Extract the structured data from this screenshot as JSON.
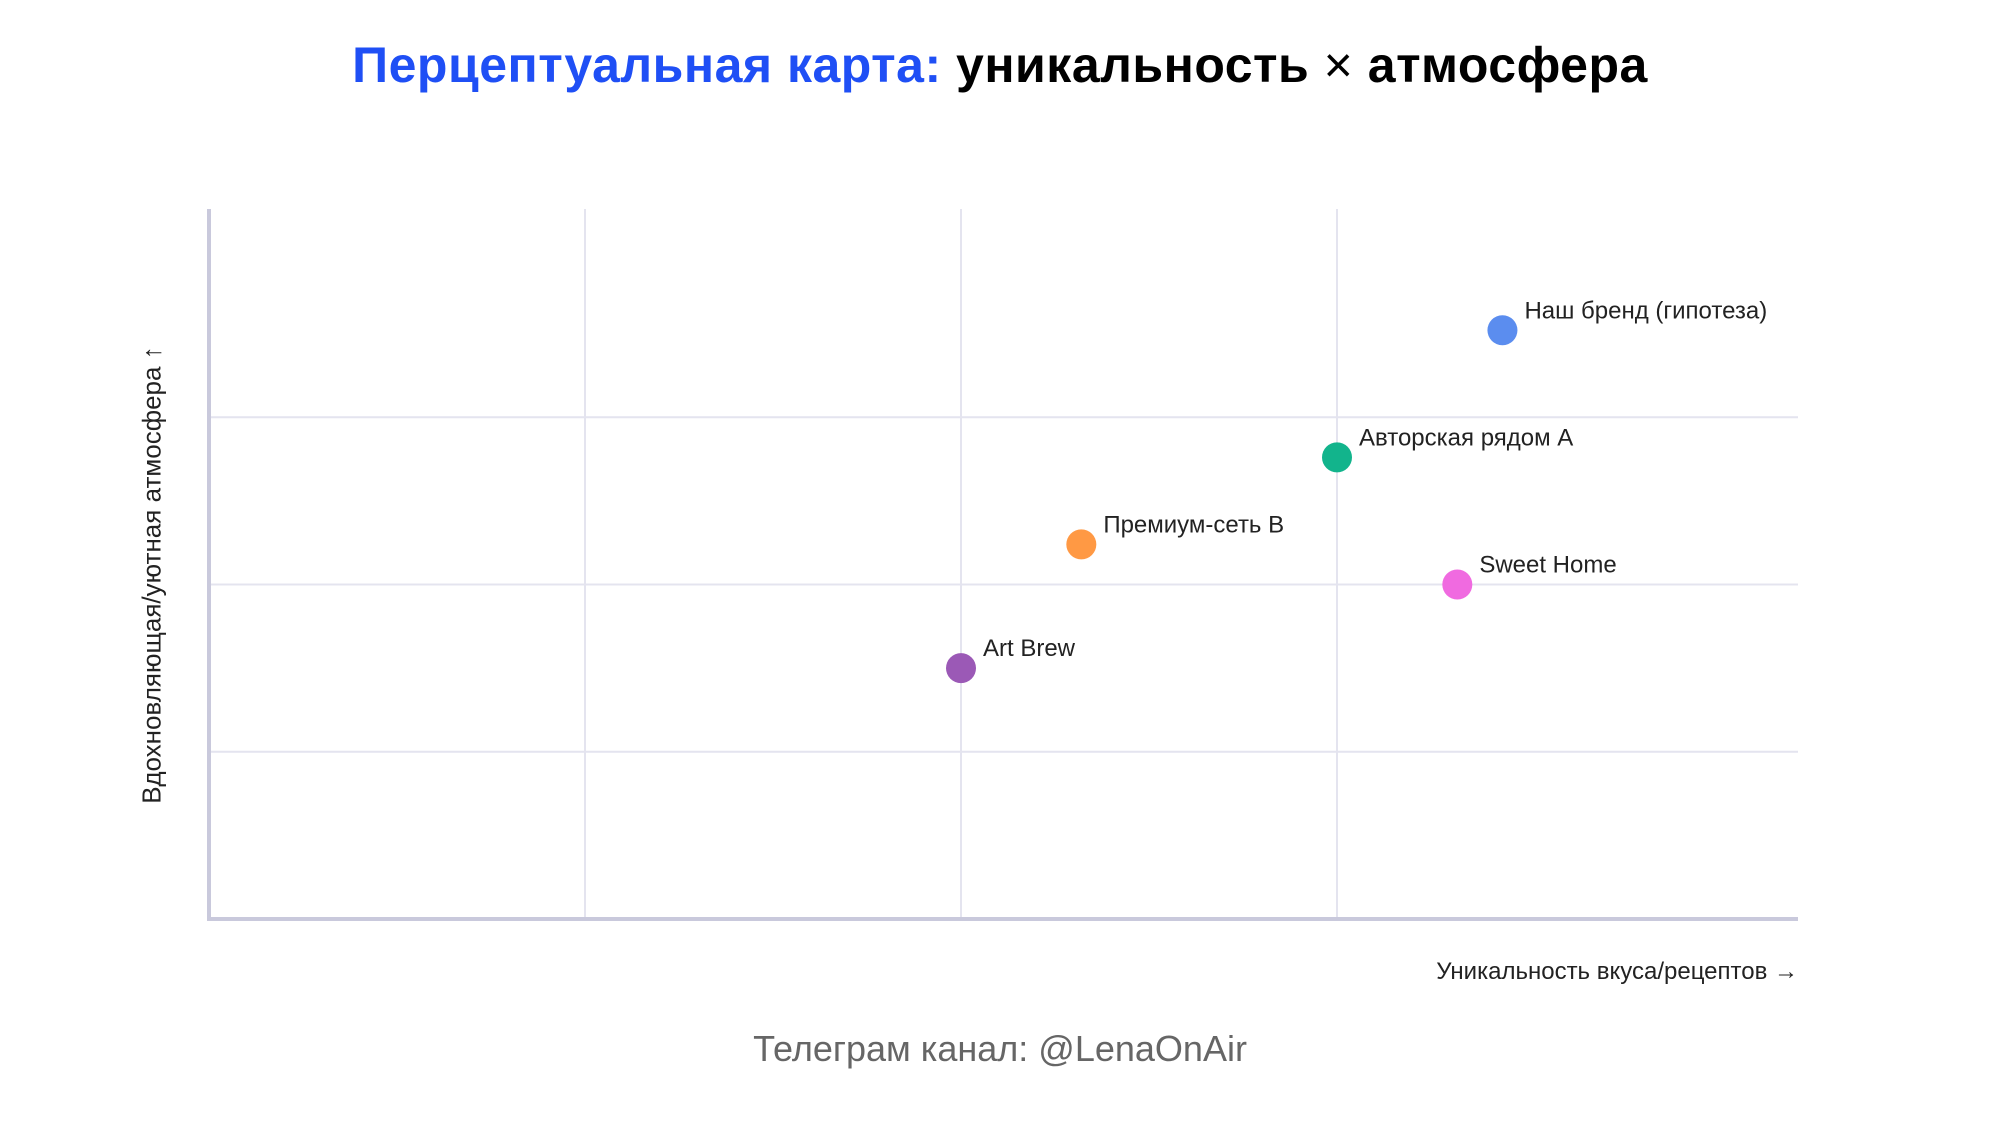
{
  "title": {
    "accent": "Перцептуальная карта:",
    "part1": "уникальность",
    "times": "×",
    "part2": "атмосфера",
    "accent_color": "#1f4ff5"
  },
  "axes": {
    "x_label": "Уникальность вкуса/рецептов →",
    "y_label": "Вдохновляющая/уютная атмосфера ↑"
  },
  "footer": "Телеграм канал: @LenaOnAir",
  "chart_data": {
    "type": "scatter",
    "title": "Перцептуальная карта: уникальность × атмосфера",
    "xlabel": "Уникальность вкуса/рецептов →",
    "ylabel": "Вдохновляющая/уютная атмосфера ↑",
    "xlim": [
      0,
      10.6
    ],
    "ylim": [
      0,
      10.6
    ],
    "grid": true,
    "gridlines_x": [
      2.5,
      5,
      7.5
    ],
    "gridlines_y": [
      2.5,
      5,
      7.5
    ],
    "tick_labels_shown": false,
    "legend": "none (direct labels)",
    "points": [
      {
        "label": "Наш бренд (гипотеза)",
        "x": 8.6,
        "y": 8.8,
        "color": "#5b8def"
      },
      {
        "label": "Авторская рядом A",
        "x": 7.5,
        "y": 6.9,
        "color": "#12b48c"
      },
      {
        "label": "Премиум-сеть B",
        "x": 5.8,
        "y": 5.6,
        "color": "#ff9944"
      },
      {
        "label": "Sweet Home",
        "x": 8.3,
        "y": 5.0,
        "color": "#f06ae0"
      },
      {
        "label": "Art Brew",
        "x": 5.0,
        "y": 3.75,
        "color": "#9b59b6"
      }
    ]
  }
}
